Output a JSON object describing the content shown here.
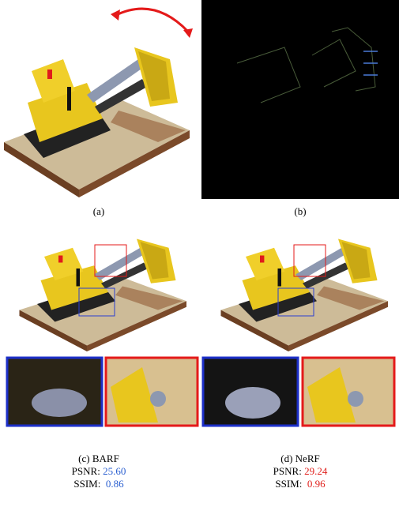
{
  "panels": [
    {
      "label": "(a)"
    },
    {
      "label": "(b)"
    },
    {
      "label": "(c) BARF",
      "psnr_label": "PSNR:",
      "psnr": "25.60",
      "ssim_label": "SSIM:",
      "ssim": "0.86"
    },
    {
      "label": "(d) NeRF",
      "psnr_label": "PSNR:",
      "psnr": "29.24",
      "ssim_label": "SSIM:",
      "ssim": "0.96"
    }
  ]
}
